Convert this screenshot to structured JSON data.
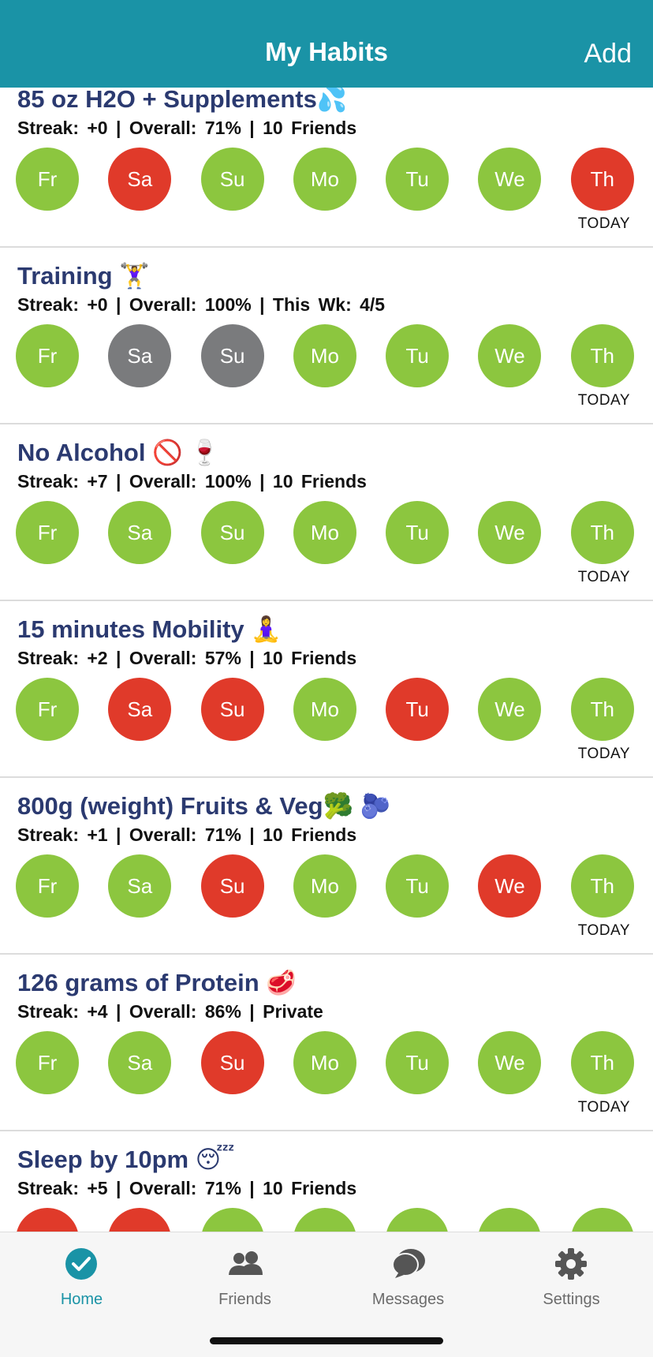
{
  "header": {
    "title": "My Habits",
    "add": "Add"
  },
  "days": [
    "Fr",
    "Sa",
    "Su",
    "Mo",
    "Tu",
    "We",
    "Th"
  ],
  "today_label": "TODAY",
  "habits": [
    {
      "title": "85 oz H2O + Supplements💦",
      "stats": "Streak: +0 | Overall: 71% | 10 Friends",
      "states": [
        "done",
        "missed",
        "done",
        "done",
        "done",
        "done",
        "missed"
      ]
    },
    {
      "title": "Training 🏋️‍♀️",
      "stats": "Streak: +0 | Overall: 100% | This Wk: 4/5",
      "states": [
        "done",
        "skipped",
        "skipped",
        "done",
        "done",
        "done",
        "done"
      ]
    },
    {
      "title": "No Alcohol 🚫 🍷",
      "stats": "Streak: +7 | Overall: 100% | 10 Friends",
      "states": [
        "done",
        "done",
        "done",
        "done",
        "done",
        "done",
        "done"
      ]
    },
    {
      "title": "15 minutes Mobility 🧘‍♀️",
      "stats": "Streak: +2 | Overall: 57% | 10 Friends",
      "states": [
        "done",
        "missed",
        "missed",
        "done",
        "missed",
        "done",
        "done"
      ]
    },
    {
      "title": "800g (weight) Fruits & Veg🥦 🫐",
      "stats": "Streak: +1 | Overall: 71% | 10 Friends",
      "states": [
        "done",
        "done",
        "missed",
        "done",
        "done",
        "missed",
        "done"
      ]
    },
    {
      "title": "126 grams of Protein 🥩",
      "stats": "Streak: +4 | Overall: 86% | Private",
      "states": [
        "done",
        "done",
        "missed",
        "done",
        "done",
        "done",
        "done"
      ]
    },
    {
      "title": "Sleep by 10pm 😴",
      "stats": "Streak: +5 | Overall: 71% | 10 Friends",
      "states": [
        "missed",
        "missed",
        "done",
        "done",
        "done",
        "done",
        "done"
      ]
    }
  ],
  "tabs": [
    {
      "label": "Home",
      "active": true
    },
    {
      "label": "Friends",
      "active": false
    },
    {
      "label": "Messages",
      "active": false
    },
    {
      "label": "Settings",
      "active": false
    }
  ]
}
